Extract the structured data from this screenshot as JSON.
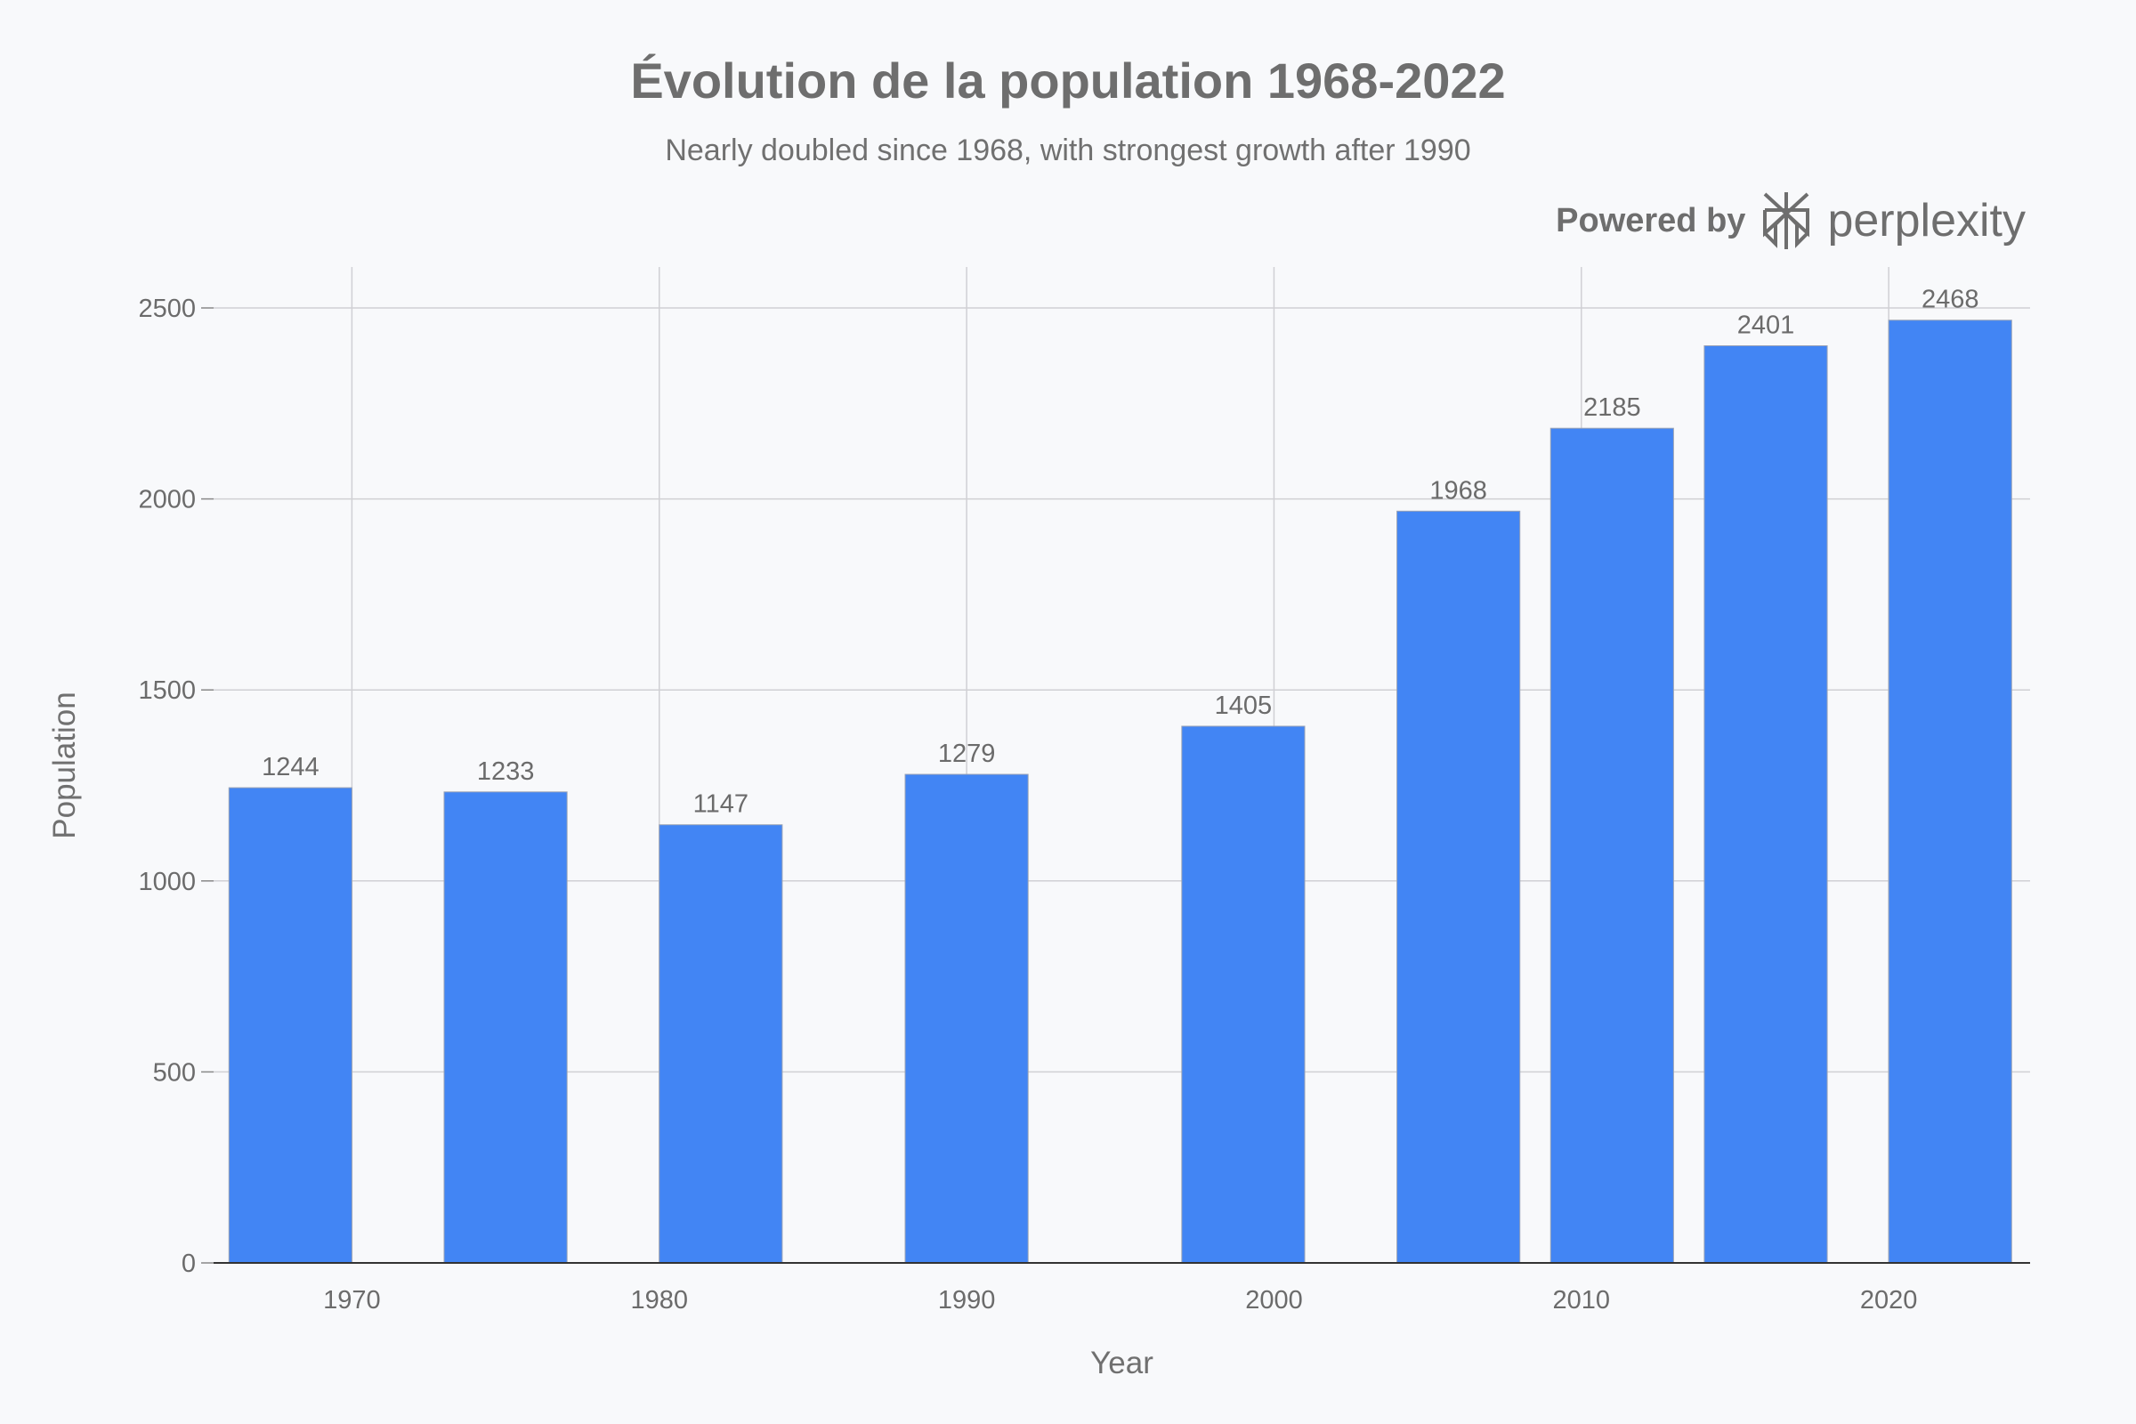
{
  "chart_data": {
    "type": "bar",
    "title": "Évolution de la population 1968-2022",
    "subtitle": "Nearly doubled since 1968, with strongest growth after 1990",
    "xlabel": "Year",
    "ylabel": "Population",
    "x": [
      1968,
      1975,
      1982,
      1990,
      1999,
      2006,
      2011,
      2016,
      2022
    ],
    "values": [
      1244,
      1233,
      1147,
      1279,
      1405,
      1968,
      2185,
      2401,
      2468
    ],
    "xticks": [
      1970,
      1980,
      1990,
      2000,
      2010,
      2020
    ],
    "yticks": [
      0,
      500,
      1000,
      1500,
      2000,
      2500
    ],
    "xlim": [
      1965.5,
      2024.6
    ],
    "ylim": [
      0,
      2600
    ],
    "grid": true,
    "bar_color": "#4285f4",
    "data_labels": true
  },
  "branding": {
    "powered_by": "Powered by",
    "brand": "perplexity",
    "icon": "perplexity-logo-icon"
  }
}
